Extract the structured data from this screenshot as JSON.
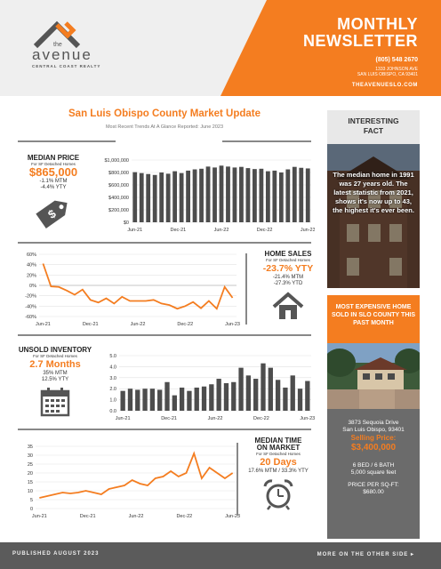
{
  "header": {
    "logo_the": "the",
    "logo_name": "avenue",
    "logo_sub": "CENTRAL COAST REALTY",
    "title_line1": "MONTHLY",
    "title_line2": "NEWSLETTER",
    "phone": "(805) 548 2670",
    "address1": "1333 JOHNSON AVE",
    "address2": "SAN LUIS OBISPO, CA 93401",
    "website": "THEAVENUESLO.COM"
  },
  "main": {
    "title": "San Luis Obispo County Market Update",
    "subtitle": "Most Recent Trends At A Glance Reported:  June 2023"
  },
  "median_price": {
    "title": "MEDIAN PRICE",
    "note": "For SF Detached Homes",
    "value": "$865,000",
    "mtm": "-1.1% MTM",
    "ytd": "-4.4% YTY"
  },
  "home_sales": {
    "title": "HOME SALES",
    "note": "For SF Detached Homes",
    "value": "-23.7% YTY",
    "mtm": "-21.4% MTM",
    "ytd": "-27.3% YTD"
  },
  "unsold_inventory": {
    "title": "UNSOLD INVENTORY",
    "note": "For SF Detached Homes",
    "value": "2.7 Months",
    "mtm": "35% MTM",
    "yty": "12.5% YTY"
  },
  "median_time": {
    "title_line1": "MEDIAN TIME",
    "title_line2": "ON MARKET",
    "note": "For SF Detached Homes",
    "value": "20 Days",
    "change": "17.6% MTM / 33.3% YTY"
  },
  "sidebar": {
    "fact_title_line1": "INTERESTING",
    "fact_title_line2": "FACT",
    "fact_text": "The median home in 1991 was 27 years old. The latest statistic from 2021, shows it's now up to 43, the highest it's ever been.",
    "expensive_title": "MOST EXPENSIVE HOME SOLD IN SLO COUNTY THIS PAST MONTH",
    "address1": "3873 Sequoia Drive",
    "address2": "San Luis Obispo, 93401",
    "price_label": "Selling Price:",
    "price": "$3,400,000",
    "beds": "6 BED / 6 BATH",
    "sqft": "5,000 square feet",
    "ppsf_label": "PRICE PER SQ-FT:",
    "ppsf": "$680.00"
  },
  "footer": {
    "published": "PUBLISHED AUGUST 2023",
    "more": "MORE ON THE OTHER SIDE ▸"
  },
  "colors": {
    "accent": "#f47d20",
    "bar": "#4d4d4d",
    "gray": "#6b6b6b"
  },
  "chart_data": [
    {
      "type": "bar",
      "title": "",
      "yticks": [
        "$1,000,000",
        "$800,000",
        "$600,000",
        "$400,000",
        "$200,000",
        "$0"
      ],
      "ylim": [
        0,
        1000000
      ],
      "xticks": [
        "Jun-21",
        "Dec-21",
        "Jun-22",
        "Dec-22",
        "Jun-23"
      ],
      "values": [
        805000,
        790000,
        775000,
        760000,
        800000,
        780000,
        820000,
        790000,
        830000,
        850000,
        860000,
        895000,
        880000,
        910000,
        895000,
        880000,
        890000,
        870000,
        855000,
        860000,
        820000,
        830000,
        800000,
        850000,
        890000,
        875000,
        865000
      ]
    },
    {
      "type": "line",
      "yticks": [
        "60%",
        "40%",
        "20%",
        "0%",
        "-20%",
        "-40%",
        "-60%"
      ],
      "ylim": [
        -60,
        60
      ],
      "xticks": [
        "Jun-21",
        "Dec-21",
        "Jun-22",
        "Dec-22",
        "Jun-23"
      ],
      "values": [
        42,
        -2,
        -3,
        -10,
        -18,
        -8,
        -28,
        -33,
        -25,
        -35,
        -22,
        -30,
        -30,
        -30,
        -28,
        -35,
        -38,
        -45,
        -40,
        -32,
        -44,
        -30,
        -45,
        -3,
        -24
      ]
    },
    {
      "type": "bar",
      "yticks": [
        "5.0",
        "4.0",
        "3.0",
        "2.0",
        "1.0",
        "0.0"
      ],
      "ylim": [
        0,
        5
      ],
      "xticks": [
        "Jun-21",
        "Dec-21",
        "Jun-22",
        "Dec-22",
        "Jun-23"
      ],
      "values": [
        1.8,
        2.0,
        1.9,
        2.0,
        2.0,
        1.9,
        2.6,
        1.4,
        2.1,
        1.8,
        2.1,
        2.2,
        2.4,
        2.9,
        2.5,
        2.6,
        3.9,
        3.2,
        2.9,
        4.3,
        3.9,
        2.8,
        2.1,
        3.2,
        2.0,
        2.7
      ]
    },
    {
      "type": "line",
      "yticks": [
        "35",
        "30",
        "25",
        "20",
        "15",
        "10",
        "5",
        "0"
      ],
      "ylim": [
        0,
        35
      ],
      "xticks": [
        "Jun-21",
        "Dec-21",
        "Jun-22",
        "Dec-22",
        "Jun-23"
      ],
      "values": [
        6,
        7,
        8,
        9,
        8.5,
        9,
        10,
        9,
        8,
        11,
        12,
        13,
        16,
        14,
        13,
        17,
        18,
        21,
        18,
        20,
        31,
        17,
        23,
        20,
        17,
        20
      ]
    }
  ]
}
